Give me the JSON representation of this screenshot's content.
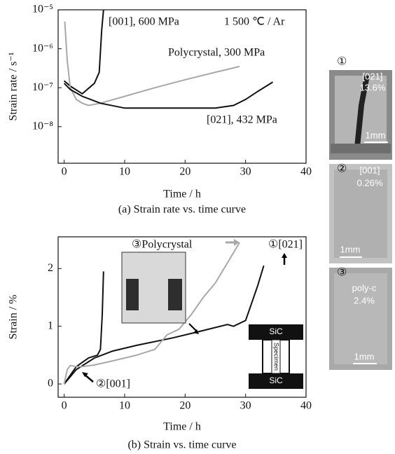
{
  "chart_data": [
    {
      "type": "line",
      "title": "(a) Strain rate vs. time curve",
      "x_label": "Time / h",
      "y_label": "Strain rate / s⁻¹",
      "log_y": true,
      "grid": false,
      "annotation": "1 500 ℃ / Ar",
      "xlim": [
        -1,
        40
      ],
      "xticks": [
        0,
        10,
        20,
        30,
        40
      ],
      "ylim": [
        1.15e-09,
        1e-05
      ],
      "yticks": [
        {
          "value": 1e-05,
          "label": "10⁻⁵"
        },
        {
          "value": 1e-06,
          "label": "10⁻⁶"
        },
        {
          "value": 1e-07,
          "label": "10⁻⁷"
        },
        {
          "value": 1e-08,
          "label": "10⁻⁸"
        }
      ],
      "series": [
        {
          "name": "[001], 600 MPa",
          "color": "#111111",
          "x": [
            0,
            1,
            3,
            5,
            5.8,
            6.2,
            6.5
          ],
          "values": [
            1.5e-07,
            1.1e-07,
            7e-08,
            1.3e-07,
            2.5e-07,
            3e-06,
            1e-05
          ]
        },
        {
          "name": "Polycrystal, 300 MPa",
          "color": "#a8a8a8",
          "x": [
            0.1,
            0.5,
            1,
            2,
            3,
            4,
            6,
            10,
            15,
            20,
            25,
            29
          ],
          "values": [
            5e-06,
            5e-07,
            1e-07,
            5e-08,
            4e-08,
            3.5e-08,
            4e-08,
            6e-08,
            1e-07,
            1.6e-07,
            2.5e-07,
            3.5e-07
          ]
        },
        {
          "name": "[021], 432 MPa",
          "color": "#111111",
          "x": [
            0,
            1,
            3,
            6,
            10,
            15,
            20,
            25,
            28,
            30,
            32,
            34.5
          ],
          "values": [
            1.3e-07,
            9e-08,
            6e-08,
            4e-08,
            3e-08,
            3e-08,
            3e-08,
            3e-08,
            3.5e-08,
            5e-08,
            8e-08,
            1.4e-07
          ]
        }
      ]
    },
    {
      "type": "line",
      "title": "(b) Strain vs. time curve",
      "x_label": "Time / h",
      "y_label": "Strain / %",
      "log_y": false,
      "grid": false,
      "xlim": [
        -1,
        40
      ],
      "xticks": [
        0,
        10,
        20,
        30,
        40
      ],
      "ylim": [
        -0.23,
        2.55
      ],
      "yticks": [
        0,
        1,
        2
      ],
      "series": [
        {
          "name": "②[001]",
          "color": "#111111",
          "x": [
            0,
            2,
            4,
            5.5,
            6,
            6.3,
            6.5
          ],
          "values": [
            0,
            0.3,
            0.45,
            0.5,
            0.6,
            1.2,
            1.95
          ]
        },
        {
          "name": "①[021]",
          "color": "#111111",
          "x": [
            0,
            2,
            5,
            8,
            12,
            18,
            22,
            27,
            28,
            30,
            32,
            33
          ],
          "values": [
            0,
            0.25,
            0.45,
            0.57,
            0.67,
            0.8,
            0.9,
            1.03,
            1,
            1.1,
            1.7,
            2.05
          ]
        },
        {
          "name": "③Polycrystal",
          "color": "#a8a8a8",
          "x": [
            0,
            0.5,
            1,
            2,
            3,
            5,
            8,
            12,
            15,
            17,
            19,
            21,
            23,
            25,
            27,
            29
          ],
          "values": [
            0,
            0.25,
            0.32,
            0.3,
            0.3,
            0.33,
            0.4,
            0.5,
            0.6,
            0.85,
            0.95,
            1.2,
            1.5,
            1.75,
            2.1,
            2.45
          ]
        }
      ]
    }
  ],
  "schematic": {
    "top": "SiC",
    "middle": "Specimen",
    "bottom": "SiC"
  },
  "photos": [
    {
      "number": "①",
      "orientation": "[021]",
      "strain": "13.6%",
      "scale": "1mm"
    },
    {
      "number": "②",
      "orientation": "[001]",
      "strain": "0.26%",
      "scale": "1mm"
    },
    {
      "number": "③",
      "orientation": "poly-c",
      "strain": "2.4%",
      "scale": "1mm"
    }
  ]
}
